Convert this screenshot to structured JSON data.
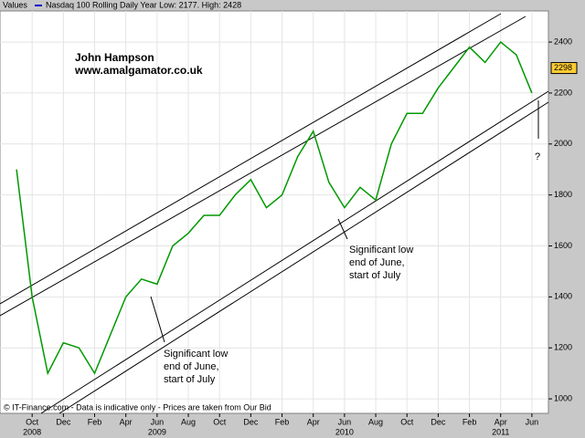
{
  "chart_data": {
    "type": "line",
    "legend_label": "Values",
    "title": "Nasdaq 100 Rolling Daily   Year Low: 2177. High: 2428",
    "footer": "© IT-Finance.com - Data is indicative only - Prices are taken from Our Bid",
    "author": "John Hampson",
    "website": "www.amalgamator.co.uk",
    "question_mark": "?",
    "annotations": [
      {
        "lines": [
          "Significant low",
          "end of June,",
          "start of July"
        ]
      },
      {
        "lines": [
          "Significant low",
          "end of June,",
          "start of July"
        ]
      }
    ],
    "color": "#009900",
    "x": [
      "2008-09",
      "2008-10",
      "2008-11",
      "2008-12",
      "2009-01",
      "2009-02",
      "2009-03",
      "2009-04",
      "2009-05",
      "2009-06",
      "2009-07",
      "2009-08",
      "2009-09",
      "2009-10",
      "2009-11",
      "2009-12",
      "2010-01",
      "2010-02",
      "2010-03",
      "2010-04",
      "2010-05",
      "2010-06",
      "2010-07",
      "2010-08",
      "2010-09",
      "2010-10",
      "2010-11",
      "2010-12",
      "2011-01",
      "2011-02",
      "2011-03",
      "2011-04",
      "2011-05",
      "2011-06"
    ],
    "values": [
      1900,
      1400,
      1100,
      1220,
      1200,
      1100,
      1250,
      1400,
      1470,
      1450,
      1600,
      1650,
      1720,
      1720,
      1800,
      1860,
      1750,
      1800,
      1950,
      2050,
      1850,
      1750,
      1830,
      1780,
      2000,
      2120,
      2120,
      2220,
      2300,
      2380,
      2320,
      2400,
      2350,
      2200
    ],
    "last_value": 2298,
    "xlim": [
      "2008-08",
      "2011-07"
    ],
    "xticks": [
      {
        "value": "2008-10",
        "label": "Oct"
      },
      {
        "value": "2008-12",
        "label": "Dec"
      },
      {
        "value": "2009-02",
        "label": "Feb"
      },
      {
        "value": "2009-04",
        "label": "Apr"
      },
      {
        "value": "2009-06",
        "label": "Jun"
      },
      {
        "value": "2009-08",
        "label": "Aug"
      },
      {
        "value": "2009-10",
        "label": "Oct"
      },
      {
        "value": "2009-12",
        "label": "Dec"
      },
      {
        "value": "2010-02",
        "label": "Feb"
      },
      {
        "value": "2010-04",
        "label": "Apr"
      },
      {
        "value": "2010-06",
        "label": "Jun"
      },
      {
        "value": "2010-08",
        "label": "Aug"
      },
      {
        "value": "2010-10",
        "label": "Oct"
      },
      {
        "value": "2010-12",
        "label": "Dec"
      },
      {
        "value": "2011-02",
        "label": "Feb"
      },
      {
        "value": "2011-04",
        "label": "Apr"
      },
      {
        "value": "2011-06",
        "label": "Jun"
      }
    ],
    "year_labels": [
      {
        "value": "2008-10",
        "label": "2008"
      },
      {
        "value": "2009-06",
        "label": "2009"
      },
      {
        "value": "2010-06",
        "label": "2010"
      },
      {
        "value": "2011-04",
        "label": "2011"
      }
    ],
    "ylim": [
      943,
      2522
    ],
    "yticks": [
      1000,
      1200,
      1400,
      1600,
      1800,
      2000,
      2200,
      2400
    ],
    "grid": true
  }
}
